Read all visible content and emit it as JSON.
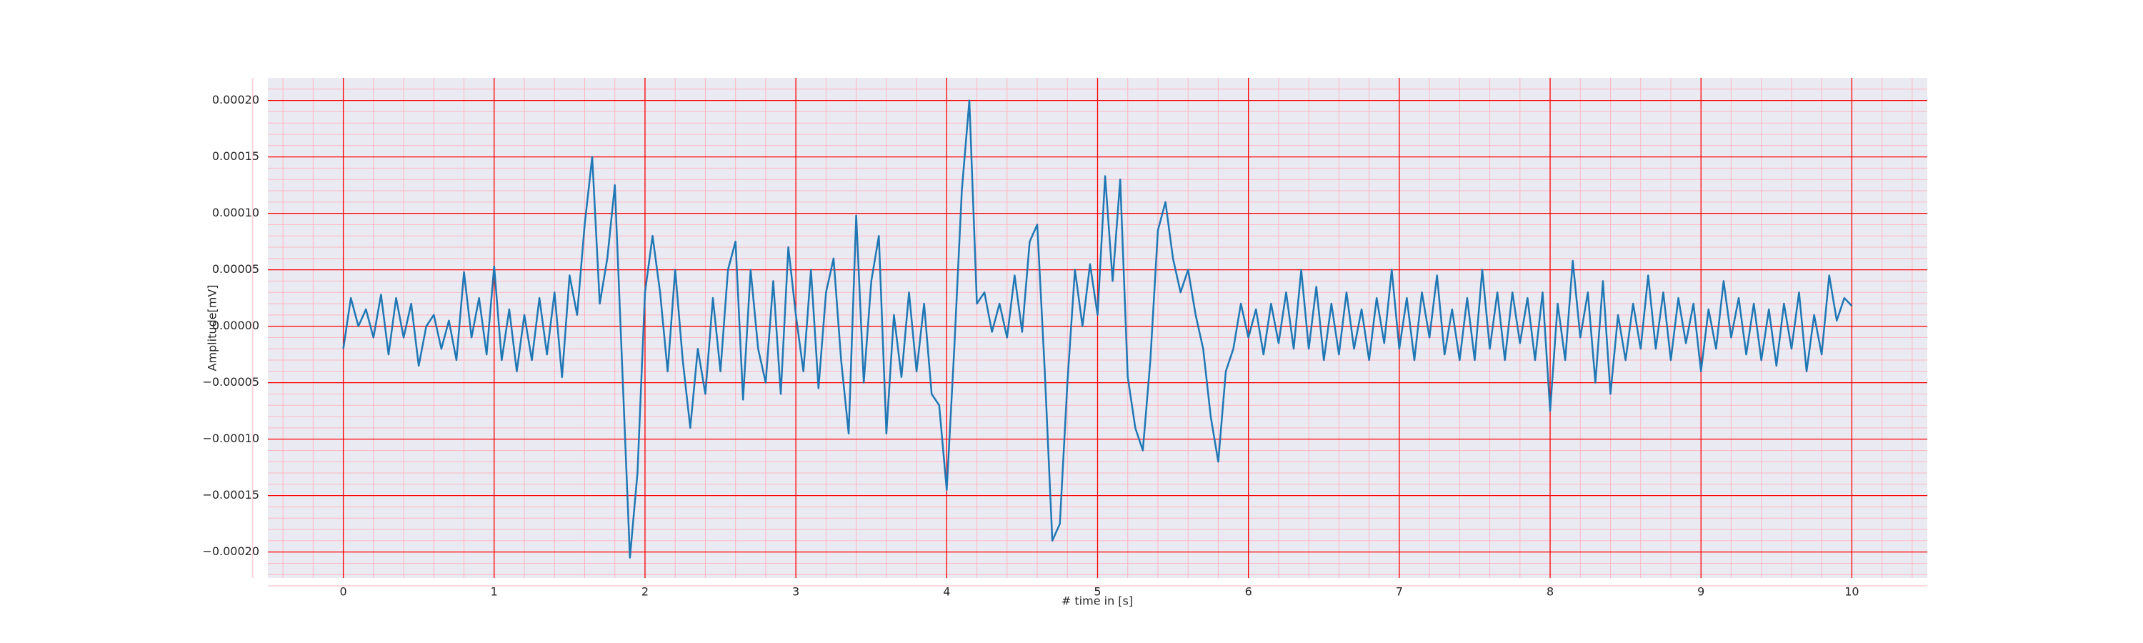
{
  "chart_data": {
    "type": "line",
    "xlabel": "# time in [s]",
    "ylabel": "Amplitude[mV]",
    "x": [
      0,
      0.05,
      0.1,
      0.15,
      0.2,
      0.25,
      0.3,
      0.35,
      0.4,
      0.45,
      0.5,
      0.55,
      0.6,
      0.65,
      0.7,
      0.75,
      0.8,
      0.85,
      0.9,
      0.95,
      1,
      1.05,
      1.1,
      1.15,
      1.2,
      1.25,
      1.3,
      1.35,
      1.4,
      1.45,
      1.5,
      1.55,
      1.6,
      1.65,
      1.7,
      1.75,
      1.8,
      1.85,
      1.9,
      1.95,
      2,
      2.05,
      2.1,
      2.15,
      2.2,
      2.25,
      2.3,
      2.35,
      2.4,
      2.45,
      2.5,
      2.55,
      2.6,
      2.65,
      2.7,
      2.75,
      2.8,
      2.85,
      2.9,
      2.95,
      3,
      3.05,
      3.1,
      3.15,
      3.2,
      3.25,
      3.3,
      3.35,
      3.4,
      3.45,
      3.5,
      3.55,
      3.6,
      3.65,
      3.7,
      3.75,
      3.8,
      3.85,
      3.9,
      3.95,
      4,
      4.05,
      4.1,
      4.15,
      4.2,
      4.25,
      4.3,
      4.35,
      4.4,
      4.45,
      4.5,
      4.55,
      4.6,
      4.65,
      4.7,
      4.75,
      4.8,
      4.85,
      4.9,
      4.95,
      5,
      5.05,
      5.1,
      5.15,
      5.2,
      5.25,
      5.3,
      5.35,
      5.4,
      5.45,
      5.5,
      5.55,
      5.6,
      5.65,
      5.7,
      5.75,
      5.8,
      5.85,
      5.9,
      5.95,
      6,
      6.05,
      6.1,
      6.15,
      6.2,
      6.25,
      6.3,
      6.35,
      6.4,
      6.45,
      6.5,
      6.55,
      6.6,
      6.65,
      6.7,
      6.75,
      6.8,
      6.85,
      6.9,
      6.95,
      7,
      7.05,
      7.1,
      7.15,
      7.2,
      7.25,
      7.3,
      7.35,
      7.4,
      7.45,
      7.5,
      7.55,
      7.6,
      7.65,
      7.7,
      7.75,
      7.8,
      7.85,
      7.9,
      7.95,
      8,
      8.05,
      8.1,
      8.15,
      8.2,
      8.25,
      8.3,
      8.35,
      8.4,
      8.45,
      8.5,
      8.55,
      8.6,
      8.65,
      8.7,
      8.75,
      8.8,
      8.85,
      8.9,
      8.95,
      9,
      9.05,
      9.1,
      9.15,
      9.2,
      9.25,
      9.3,
      9.35,
      9.4,
      9.45,
      9.5,
      9.55,
      9.6,
      9.65,
      9.7,
      9.75,
      9.8,
      9.85,
      9.9,
      9.95,
      10
    ],
    "series": [
      {
        "color": "#1f77b4",
        "values": [
          -2e-05,
          2.5e-05,
          0,
          1.5e-05,
          -1e-05,
          2.8e-05,
          -2.5e-05,
          2.5e-05,
          -1e-05,
          2e-05,
          -3.5e-05,
          0,
          1e-05,
          -2e-05,
          5e-06,
          -3e-05,
          4.8e-05,
          -1e-05,
          2.5e-05,
          -2.5e-05,
          5.3e-05,
          -3e-05,
          1.5e-05,
          -4e-05,
          1e-05,
          -3e-05,
          2.5e-05,
          -2.5e-05,
          3e-05,
          -4.5e-05,
          4.5e-05,
          1e-05,
          9e-05,
          0.00015,
          2e-05,
          6e-05,
          0.000125,
          -4e-05,
          -0.000205,
          -0.00013,
          3e-05,
          8e-05,
          3e-05,
          -4e-05,
          5e-05,
          -3e-05,
          -9e-05,
          -2e-05,
          -6e-05,
          2.5e-05,
          -4e-05,
          5e-05,
          7.5e-05,
          -6.5e-05,
          5e-05,
          -2e-05,
          -5e-05,
          4e-05,
          -6e-05,
          7e-05,
          1e-05,
          -4e-05,
          5e-05,
          -5.5e-05,
          3e-05,
          6e-05,
          -3e-05,
          -9.5e-05,
          9.8e-05,
          -5e-05,
          4e-05,
          8e-05,
          -9.5e-05,
          1e-05,
          -4.5e-05,
          3e-05,
          -4e-05,
          2e-05,
          -6e-05,
          -7e-05,
          -0.000145,
          -2e-05,
          0.00012,
          0.0002,
          2e-05,
          3e-05,
          -5e-06,
          2e-05,
          -1e-05,
          4.5e-05,
          -5e-06,
          7.5e-05,
          9e-05,
          -4e-05,
          -0.00019,
          -0.000175,
          -5e-05,
          5e-05,
          0,
          5.5e-05,
          1e-05,
          0.000133,
          4e-05,
          0.00013,
          -4.5e-05,
          -9e-05,
          -0.00011,
          -3e-05,
          8.5e-05,
          0.00011,
          6e-05,
          3e-05,
          5e-05,
          1e-05,
          -2e-05,
          -8e-05,
          -0.00012,
          -4e-05,
          -2e-05,
          2e-05,
          -1e-05,
          1.5e-05,
          -2.5e-05,
          2e-05,
          -1.5e-05,
          3e-05,
          -2e-05,
          5e-05,
          -2e-05,
          3.5e-05,
          -3e-05,
          2e-05,
          -2.5e-05,
          3e-05,
          -2e-05,
          1.5e-05,
          -3e-05,
          2.5e-05,
          -1.5e-05,
          5e-05,
          -2e-05,
          2.5e-05,
          -3e-05,
          3e-05,
          -1e-05,
          4.5e-05,
          -2.5e-05,
          1.5e-05,
          -3e-05,
          2.5e-05,
          -3e-05,
          5e-05,
          -2e-05,
          3e-05,
          -3e-05,
          3e-05,
          -1.5e-05,
          2.5e-05,
          -3e-05,
          3e-05,
          -7.5e-05,
          2e-05,
          -3e-05,
          5.8e-05,
          -1e-05,
          3e-05,
          -5e-05,
          4e-05,
          -6e-05,
          1e-05,
          -3e-05,
          2e-05,
          -2e-05,
          4.5e-05,
          -2e-05,
          3e-05,
          -3e-05,
          2.5e-05,
          -1.5e-05,
          2e-05,
          -4e-05,
          1.5e-05,
          -2e-05,
          4e-05,
          -1e-05,
          2.5e-05,
          -2.5e-05,
          2e-05,
          -3e-05,
          1.5e-05,
          -3.5e-05,
          2e-05,
          -2e-05,
          3e-05,
          -4e-05,
          1e-05,
          -2.5e-05,
          4.5e-05,
          5e-06,
          2.5e-05,
          1.8e-05
        ]
      }
    ],
    "xlim": [
      -0.5,
      10.5
    ],
    "xticks": [
      0,
      1,
      2,
      3,
      4,
      5,
      6,
      7,
      8,
      9,
      10
    ],
    "ylim": [
      -0.000223,
      0.00022
    ],
    "yticks": [
      {
        "value": -0.0002,
        "label": "−0.00020"
      },
      {
        "value": -0.00015,
        "label": "−0.00015"
      },
      {
        "value": -0.0001,
        "label": "−0.00010"
      },
      {
        "value": -5e-05,
        "label": "−0.00005"
      },
      {
        "value": 0,
        "label": "0.00000"
      },
      {
        "value": 5e-05,
        "label": "0.00005"
      },
      {
        "value": 0.0001,
        "label": "0.00010"
      },
      {
        "value": 0.00015,
        "label": "0.00015"
      },
      {
        "value": 0.0002,
        "label": "0.00020"
      }
    ],
    "grid": true,
    "grid_color": "#ff0000",
    "minor_grid": true,
    "minor_grid_color": "#ffb6c1",
    "background": "#eaeaf2"
  }
}
